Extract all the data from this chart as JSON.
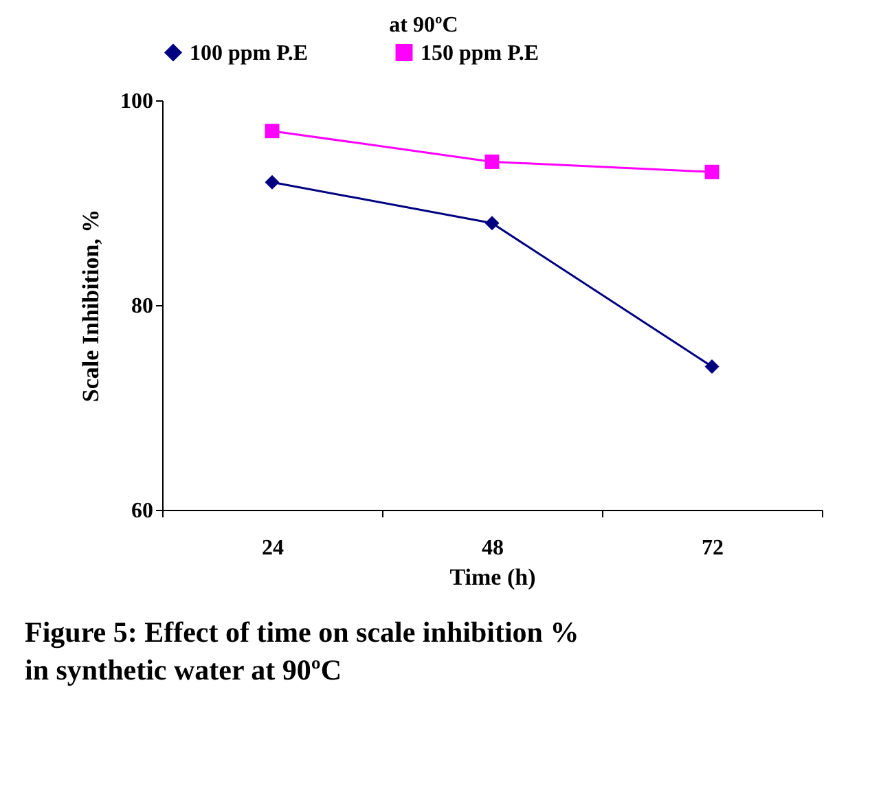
{
  "chart_data": {
    "type": "line",
    "title": "at 90ºC",
    "xlabel": "Time (h)",
    "ylabel": "Scale Inhibition, %",
    "categories": [
      "24",
      "48",
      "72"
    ],
    "series": [
      {
        "name": "100 ppm P.E",
        "color": "#000080",
        "marker": "diamond",
        "values": [
          92,
          88,
          74
        ]
      },
      {
        "name": "150 ppm P.E",
        "color": "#ff00ff",
        "marker": "square",
        "values": [
          97,
          94,
          93
        ]
      }
    ],
    "ylim": [
      60,
      100
    ],
    "yticks": [
      60,
      80,
      100
    ],
    "grid": false,
    "legend": "top",
    "line_style": "solid",
    "annotations": [
      "Figure 5: Effect of time on scale inhibition % in synthetic water at 90ºC"
    ]
  }
}
